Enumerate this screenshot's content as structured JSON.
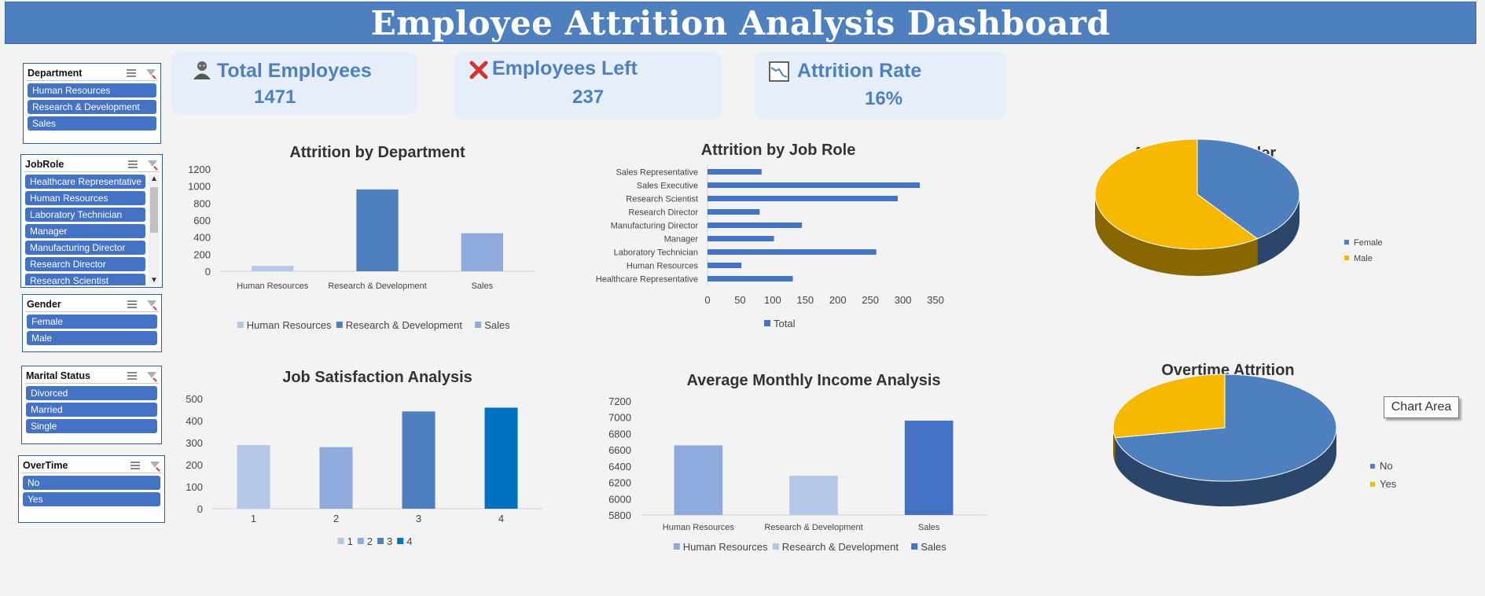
{
  "header": {
    "title": "Employee Attrition Analysis Dashboard"
  },
  "slicers": {
    "department": {
      "title": "Department",
      "items": [
        "Human Resources",
        "Research & Development",
        "Sales"
      ]
    },
    "jobrole": {
      "title": "JobRole",
      "items": [
        "Healthcare Representative",
        "Human Resources",
        "Laboratory Technician",
        "Manager",
        "Manufacturing Director",
        "Research Director",
        "Research Scientist"
      ]
    },
    "gender": {
      "title": "Gender",
      "items": [
        "Female",
        "Male"
      ]
    },
    "marital": {
      "title": "Marital Status",
      "items": [
        "Divorced",
        "Married",
        "Single"
      ]
    },
    "overtime": {
      "title": "OverTime",
      "items": [
        "No",
        "Yes"
      ]
    }
  },
  "kpis": {
    "total": {
      "title": "Total Employees",
      "value": "1471",
      "icon": "person-icon"
    },
    "left": {
      "title": "Employees Left",
      "value": "237",
      "icon": "red-x-icon"
    },
    "rate": {
      "title": "Attrition Rate",
      "value": "16%",
      "icon": "line-chart-icon"
    }
  },
  "tooltip": "Chart Area",
  "colors": {
    "header": "#4e80c0",
    "slicer_item": "#4472c4",
    "light_blue": "#b4c7e7",
    "mid_blue": "#8faadc",
    "blue": "#4e80c0",
    "dark_blue": "#0070c0",
    "gold": "#f7b900"
  },
  "chart_data": [
    {
      "id": "dept",
      "type": "bar",
      "title": "Attrition by Department",
      "categories": [
        "Human Resources",
        "Research & Development",
        "Sales"
      ],
      "values": [
        63,
        961,
        446
      ],
      "colors": [
        "#b4c7e7",
        "#4e80c0",
        "#8faadc"
      ],
      "legend": [
        "Human Resources",
        "Research & Development",
        "Sales"
      ],
      "ylim": [
        0,
        1200
      ],
      "yticks": [
        "0",
        "200",
        "400",
        "600",
        "800",
        "1000",
        "1200"
      ],
      "legend_position": "bottom"
    },
    {
      "id": "jobrole",
      "type": "bar",
      "orientation": "horizontal",
      "title": "Attrition by Job Role",
      "categories": [
        "Sales Representative",
        "Sales Executive",
        "Research Scientist",
        "Research Director",
        "Manufacturing Director",
        "Manager",
        "Laboratory Technician",
        "Human Resources",
        "Healthcare Representative"
      ],
      "values": [
        83,
        326,
        292,
        80,
        145,
        102,
        259,
        52,
        131
      ],
      "xlim": [
        0,
        350
      ],
      "xticks": [
        "0",
        "50",
        "100",
        "150",
        "200",
        "250",
        "300",
        "350"
      ],
      "legend": [
        "Total"
      ],
      "legend_position": "bottom"
    },
    {
      "id": "gender",
      "type": "pie",
      "title": "Attrition by Gender",
      "labels": [
        "Female",
        "Male"
      ],
      "values": [
        40,
        60
      ],
      "colors": [
        "#4e80c0",
        "#f7b900"
      ],
      "legend_position": "right"
    },
    {
      "id": "jobsat",
      "type": "bar",
      "title": "Job Satisfaction Analysis",
      "categories": [
        "1",
        "2",
        "3",
        "4"
      ],
      "values": [
        289,
        280,
        442,
        459
      ],
      "colors": [
        "#b4c7e7",
        "#8faadc",
        "#4e80c0",
        "#0070c0"
      ],
      "legend": [
        "1",
        "2",
        "3",
        "4"
      ],
      "ylim": [
        0,
        500
      ],
      "yticks": [
        "0",
        "100",
        "200",
        "300",
        "400",
        "500"
      ],
      "legend_position": "bottom"
    },
    {
      "id": "income",
      "type": "bar",
      "title": "Average Monthly Income Analysis",
      "categories": [
        "Human Resources",
        "Research & Development",
        "Sales"
      ],
      "values": [
        6655,
        6281,
        6959
      ],
      "colors": [
        "#8faadc",
        "#b4c7e7",
        "#4472c4"
      ],
      "legend": [
        "Human Resources",
        "Research & Development",
        "Sales"
      ],
      "ylim": [
        5800,
        7200
      ],
      "yticks": [
        "5800",
        "6000",
        "6200",
        "6400",
        "6600",
        "6800",
        "7000",
        "7200"
      ],
      "legend_position": "bottom"
    },
    {
      "id": "overtime",
      "type": "pie",
      "title": "Overtime Attrition",
      "labels": [
        "No",
        "Yes"
      ],
      "values": [
        72,
        28
      ],
      "colors": [
        "#4e80c0",
        "#f7b900"
      ],
      "legend_position": "right"
    }
  ]
}
